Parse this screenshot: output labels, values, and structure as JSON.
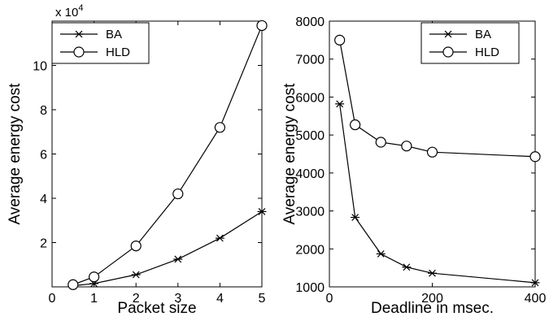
{
  "chart_data": [
    {
      "type": "line",
      "xlabel": "Packet size",
      "ylabel": "Average energy cost",
      "xlim": [
        0,
        5
      ],
      "ylim": [
        0,
        12
      ],
      "xticks": [
        0,
        1,
        2,
        3,
        4,
        5
      ],
      "yticks": [
        2,
        4,
        6,
        8,
        10
      ],
      "y_exponent": "x 10",
      "y_exponent_power": "4",
      "legend_position": "top-left",
      "series": [
        {
          "name": "BA",
          "marker": "asterisk",
          "x": [
            0.5,
            1,
            2,
            3,
            4,
            5
          ],
          "y": [
            0.05,
            0.15,
            0.55,
            1.25,
            2.2,
            3.4
          ]
        },
        {
          "name": "HLD",
          "marker": "circle",
          "x": [
            0.5,
            1,
            2,
            3,
            4,
            5
          ],
          "y": [
            0.1,
            0.45,
            1.85,
            4.2,
            7.2,
            11.8
          ]
        }
      ]
    },
    {
      "type": "line",
      "xlabel": "Deadline in msec.",
      "ylabel": "Average energy cost",
      "xlim": [
        0,
        400
      ],
      "ylim": [
        1000,
        8000
      ],
      "xticks": [
        0,
        200,
        400
      ],
      "yticks": [
        1000,
        2000,
        3000,
        4000,
        5000,
        6000,
        7000,
        8000
      ],
      "legend_position": "top-right",
      "series": [
        {
          "name": "BA",
          "marker": "asterisk",
          "x": [
            20,
            50,
            100,
            150,
            200,
            400
          ],
          "y": [
            5820,
            2830,
            1870,
            1520,
            1360,
            1110
          ]
        },
        {
          "name": "HLD",
          "marker": "circle",
          "x": [
            20,
            50,
            100,
            150,
            200,
            400
          ],
          "y": [
            7500,
            5270,
            4810,
            4710,
            4550,
            4430
          ]
        }
      ]
    }
  ]
}
